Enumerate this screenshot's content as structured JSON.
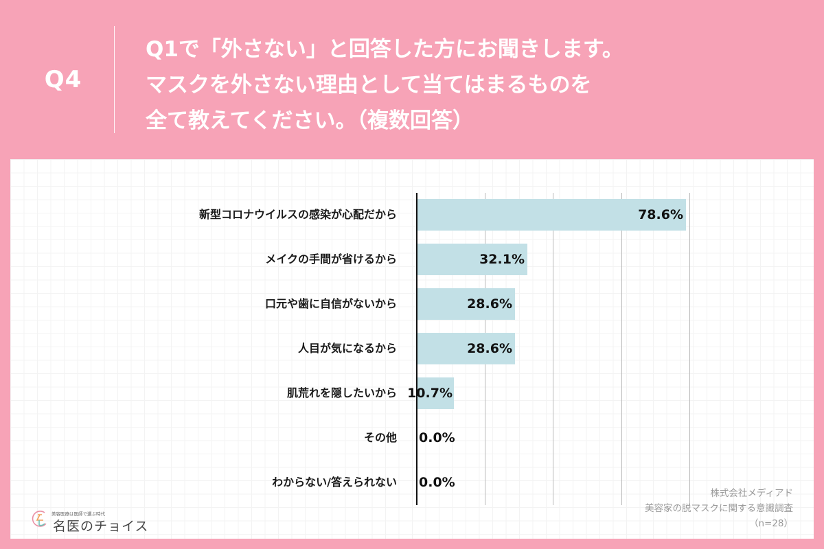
{
  "header": {
    "question_number": "Q4",
    "question_lines": [
      "Q1で「外さない」と回答した方にお聞きします。",
      "マスクを外さない理由として当てはまるものを",
      "全て教えてください。（複数回答）"
    ]
  },
  "chart_data": {
    "type": "bar",
    "orientation": "horizontal",
    "title": "Q1で「外さない」と回答した方にお聞きします。マスクを外さない理由として当てはまるものを全て教えてください。（複数回答）",
    "xlabel": "",
    "ylabel": "",
    "xlim": [
      0,
      100
    ],
    "gridlines": [
      20,
      40,
      60,
      80
    ],
    "grid": true,
    "legend": null,
    "categories": [
      "新型コロナウイルスの感染が心配だから",
      "メイクの手間が省けるから",
      "口元や歯に自信がないから",
      "人目が気になるから",
      "肌荒れを隠したいから",
      "その他",
      "わからない/答えられない"
    ],
    "values": [
      78.6,
      32.1,
      28.6,
      28.6,
      10.7,
      0.0,
      0.0
    ],
    "value_labels": [
      "78.6%",
      "32.1%",
      "28.6%",
      "28.6%",
      "10.7%",
      "0.0%",
      "0.0%"
    ],
    "bar_color": "#c2e0e6",
    "unit": "%"
  },
  "source": {
    "company": "株式会社メディアド",
    "survey": "美容家の脱マスクに関する意識調査",
    "sample": "（n=28）"
  },
  "logo": {
    "tagline": "美容医療は医師で選ぶ時代",
    "name": "名医のチョイス"
  },
  "colors": {
    "background": "#f7a3b7",
    "panel": "#ffffff",
    "bar": "#c2e0e6",
    "text": "#1a1a1a",
    "source_text": "#9a9a9a"
  }
}
